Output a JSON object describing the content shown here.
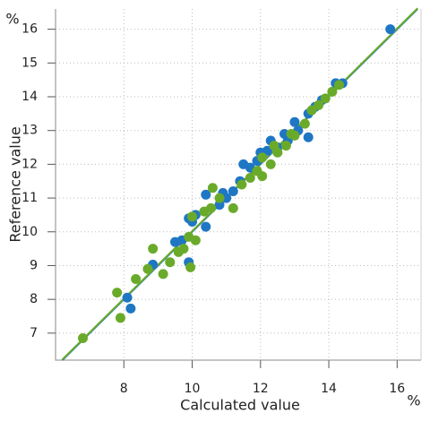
{
  "chart_data": {
    "type": "scatter",
    "y_unit": "%",
    "x_unit": "%",
    "xlabel": "Calculated value",
    "ylabel": "Reference value",
    "xlim": [
      6.0,
      16.7
    ],
    "ylim": [
      6.2,
      16.6
    ],
    "xticks": [
      8,
      10,
      12,
      14,
      16
    ],
    "yticks": [
      7,
      8,
      9,
      10,
      11,
      12,
      13,
      14,
      15,
      16
    ],
    "grid": true,
    "series": [
      {
        "color": "#1f77c4",
        "x": [
          15.8,
          8.1,
          8.2,
          8.85,
          9.9,
          9.5,
          9.7,
          9.9,
          10.1,
          10.4,
          10.4,
          10.8,
          11.0,
          11.2,
          11.4,
          11.5,
          11.7,
          11.9,
          12.2,
          12.3,
          12.5,
          12.7,
          12.8,
          13.0,
          13.1,
          13.4,
          13.4,
          13.6,
          13.8,
          14.2,
          14.4,
          10.9,
          12.0,
          10.0
        ],
        "values": [
          16.0,
          8.05,
          7.73,
          9.03,
          9.1,
          9.7,
          9.75,
          10.4,
          10.5,
          10.15,
          11.1,
          10.8,
          11.0,
          11.2,
          11.5,
          12.0,
          11.9,
          12.1,
          12.4,
          12.7,
          12.5,
          12.9,
          12.7,
          13.25,
          13.0,
          12.8,
          13.5,
          13.7,
          13.9,
          14.4,
          14.4,
          11.15,
          12.35,
          10.3
        ],
        "fit": {
          "x": [
            6.2,
            16.6
          ],
          "y": [
            6.2,
            16.6
          ]
        }
      },
      {
        "color": "#6aaa2a",
        "x": [
          6.8,
          7.8,
          7.9,
          8.35,
          8.85,
          8.7,
          9.15,
          9.35,
          9.6,
          9.75,
          9.9,
          9.95,
          10.1,
          10.0,
          10.35,
          10.55,
          10.6,
          10.8,
          11.2,
          11.45,
          11.7,
          11.9,
          12.05,
          12.05,
          12.3,
          12.5,
          12.75,
          12.9,
          13.0,
          13.5,
          13.7,
          13.9,
          14.1,
          14.3,
          13.3,
          12.4
        ],
        "values": [
          6.85,
          8.2,
          7.45,
          8.6,
          9.5,
          8.9,
          8.75,
          9.1,
          9.4,
          9.5,
          9.85,
          8.95,
          9.75,
          10.45,
          10.6,
          10.7,
          11.3,
          11.0,
          10.7,
          11.4,
          11.6,
          11.8,
          12.2,
          11.65,
          12.0,
          12.35,
          12.55,
          12.9,
          12.85,
          13.6,
          13.75,
          13.95,
          14.15,
          14.35,
          13.2,
          12.55
        ],
        "fit": {
          "x": [
            6.2,
            16.6
          ],
          "y": [
            6.22,
            16.62
          ]
        }
      }
    ]
  }
}
